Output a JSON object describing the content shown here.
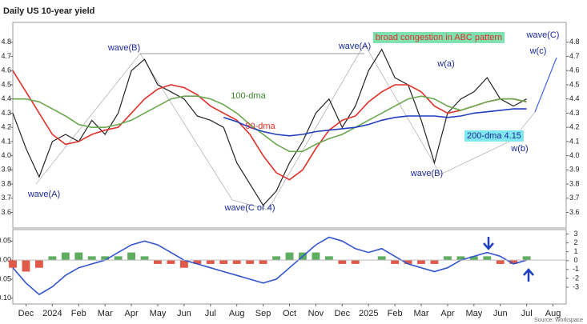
{
  "chart_data": [
    {
      "type": "line",
      "title": "Daily US 10-year yield",
      "x": [
        0,
        0.5,
        1,
        1.5,
        2,
        2.5,
        3,
        3.5,
        4,
        4.5,
        5,
        5.5,
        6,
        6.5,
        7,
        7.5,
        8,
        8.5,
        9,
        9.5,
        10,
        10.5,
        11,
        11.5,
        12,
        12.5,
        13,
        13.5,
        14,
        14.5,
        15,
        15.5,
        16,
        16.5,
        17,
        17.5,
        18,
        18.5,
        19,
        19.5
      ],
      "series": [
        {
          "color": "#222222",
          "values": [
            4.3,
            4.05,
            3.85,
            4.1,
            4.15,
            4.1,
            4.25,
            4.15,
            4.3,
            4.6,
            4.68,
            4.5,
            4.45,
            4.4,
            4.28,
            4.25,
            4.2,
            3.95,
            3.8,
            3.65,
            3.75,
            3.95,
            4.1,
            4.3,
            4.4,
            4.2,
            4.35,
            4.6,
            4.75,
            4.55,
            4.5,
            4.25,
            3.95,
            4.3,
            4.4,
            4.45,
            4.55,
            4.4,
            4.35,
            4.4
          ]
        },
        {
          "name": "50-dma",
          "color": "#e0302a",
          "values": [
            4.6,
            4.45,
            4.3,
            4.15,
            4.08,
            4.1,
            4.15,
            4.18,
            4.2,
            4.3,
            4.4,
            4.47,
            4.5,
            4.48,
            4.43,
            4.35,
            4.3,
            4.25,
            4.15,
            4.0,
            3.88,
            3.83,
            3.9,
            4.05,
            4.18,
            4.25,
            4.28,
            4.38,
            4.45,
            4.5,
            4.5,
            4.45,
            4.35,
            4.3,
            4.32,
            4.35,
            4.38,
            4.4,
            4.4,
            4.38
          ]
        },
        {
          "name": "100-dma",
          "color": "#6aa84f",
          "values": [
            4.4,
            4.4,
            4.38,
            4.33,
            4.28,
            4.22,
            4.2,
            4.2,
            4.22,
            4.25,
            4.3,
            4.35,
            4.4,
            4.42,
            4.42,
            4.4,
            4.36,
            4.3,
            4.22,
            4.15,
            4.08,
            4.03,
            4.03,
            4.08,
            4.12,
            4.15,
            4.2,
            4.25,
            4.3,
            4.35,
            4.4,
            4.42,
            4.4,
            4.35,
            4.32,
            4.35,
            4.38,
            4.4,
            4.4,
            4.38
          ]
        },
        {
          "color": "#1f3fbf",
          "values": [
            null,
            null,
            null,
            null,
            null,
            null,
            null,
            null,
            null,
            null,
            null,
            null,
            null,
            null,
            null,
            null,
            4.27,
            4.24,
            4.2,
            4.17,
            4.15,
            4.14,
            4.15,
            4.17,
            4.18,
            4.19,
            4.2,
            4.22,
            4.25,
            4.27,
            4.28,
            4.28,
            4.28,
            4.27,
            4.28,
            4.3,
            4.31,
            4.32,
            4.33,
            4.33
          ]
        }
      ],
      "xlim": [
        0,
        21
      ],
      "ylim": [
        3.49,
        4.94
      ],
      "yticks": [
        3.6,
        3.7,
        3.8,
        3.9,
        {
          "value": 4.0,
          "label": "4.0"
        },
        4.1,
        4.2,
        4.3,
        4.4,
        4.5,
        4.6,
        4.7,
        4.8
      ],
      "annotations": [
        "wave(B)",
        "wave(A)",
        "100-dma",
        "50-dma",
        "wave(C or 4)",
        "wave(A)",
        "broad congestion in ABC pattern",
        "wave(C)",
        "w(c)",
        "w(a)",
        "wave(B)",
        "200-dma 4.15",
        "w(b)"
      ],
      "source": "Source: Workspace"
    },
    {
      "type": "bar",
      "x": [
        0,
        0.5,
        1,
        1.5,
        2,
        2.5,
        3,
        3.5,
        4,
        4.5,
        5,
        5.5,
        6,
        6.5,
        7,
        7.5,
        8,
        8.5,
        9,
        9.5,
        10,
        10.5,
        11,
        11.5,
        12,
        12.5,
        13,
        13.5,
        14,
        14.5,
        15,
        15.5,
        16,
        16.5,
        17,
        17.5,
        18,
        18.5,
        19,
        19.5
      ],
      "series": [
        {
          "type": "bar",
          "color": "#5fae5f",
          "negative_color": "#e05a4a",
          "values": [
            -0.02,
            -0.03,
            -0.02,
            0.01,
            0.02,
            0.02,
            0.01,
            0.01,
            0.01,
            0.02,
            0.01,
            -0.01,
            -0.01,
            -0.02,
            -0.01,
            -0.01,
            -0.01,
            -0.01,
            -0.01,
            -0.01,
            0.01,
            0.02,
            0.02,
            0.02,
            0.01,
            -0.01,
            -0.01,
            0,
            0.01,
            -0.01,
            -0.01,
            -0.01,
            -0.01,
            0.01,
            0.01,
            0.01,
            0.01,
            -0.01,
            -0.01,
            0.01
          ]
        },
        {
          "type": "line",
          "color": "#3355cc",
          "values": [
            -0.02,
            -0.06,
            -0.09,
            -0.07,
            -0.04,
            -0.02,
            -0.01,
            0,
            0.02,
            0.04,
            0.05,
            0.04,
            0.02,
            0,
            -0.01,
            -0.02,
            -0.03,
            -0.04,
            -0.05,
            -0.06,
            -0.05,
            -0.02,
            0.01,
            0.04,
            0.06,
            0.05,
            0.03,
            0.02,
            0.03,
            0.01,
            -0.01,
            -0.02,
            -0.03,
            -0.02,
            0,
            0.01,
            0.02,
            0.01,
            -0.01,
            0
          ]
        }
      ],
      "xlim": [
        0,
        21
      ],
      "ylim": [
        -0.115,
        0.08
      ],
      "yticks": [
        {
          "value": -0.1,
          "label": "-0.10"
        },
        {
          "value": -0.05,
          "label": "-0.05"
        },
        {
          "value": 0,
          "label": "0.00"
        },
        {
          "value": 0.05,
          "label": "0.05"
        }
      ],
      "y2lim": [
        -4.9,
        3.5
      ],
      "y2ticks": [
        -3,
        -2,
        -1,
        0,
        1,
        2,
        3
      ],
      "xticks": [
        {
          "value": 0.5,
          "label": "Dec"
        },
        {
          "value": 1.5,
          "label": "2024"
        },
        {
          "value": 2.5,
          "label": "Feb"
        },
        {
          "value": 3.5,
          "label": "Mar"
        },
        {
          "value": 4.5,
          "label": "Apr"
        },
        {
          "value": 5.5,
          "label": "May"
        },
        {
          "value": 6.5,
          "label": "Jun"
        },
        {
          "value": 7.5,
          "label": "Jul"
        },
        {
          "value": 8.5,
          "label": "Aug"
        },
        {
          "value": 9.5,
          "label": "Sep"
        },
        {
          "value": 10.5,
          "label": "Oct"
        },
        {
          "value": 11.5,
          "label": "Nov"
        },
        {
          "value": 12.5,
          "label": "Dec"
        },
        {
          "value": 13.5,
          "label": "2025"
        },
        {
          "value": 14.5,
          "label": "Feb"
        },
        {
          "value": 15.5,
          "label": "Mar"
        },
        {
          "value": 16.5,
          "label": "Apr"
        },
        {
          "value": 17.5,
          "label": "May"
        },
        {
          "value": 18.5,
          "label": "Jun"
        },
        {
          "value": 19.5,
          "label": "Jul"
        },
        {
          "value": 20.5,
          "label": "Aug"
        }
      ]
    }
  ]
}
